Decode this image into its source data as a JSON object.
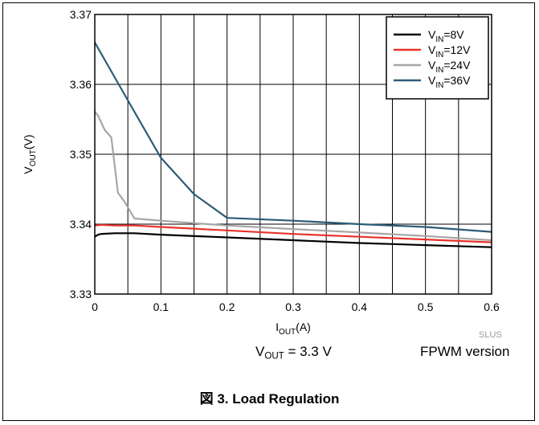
{
  "chart_data": {
    "type": "line",
    "xlabel": {
      "main": "I",
      "sub": "OUT",
      "unit": "(A)"
    },
    "ylabel": {
      "main": "V",
      "sub": "OUT",
      "unit": "(V)"
    },
    "xlim": [
      0,
      0.6
    ],
    "ylim": [
      3.33,
      3.37
    ],
    "xticks": [
      0,
      0.1,
      0.2,
      0.3,
      0.4,
      0.5,
      0.6
    ],
    "xtick_labels": [
      "0",
      "0.1",
      "0.2",
      "0.3",
      "0.4",
      "0.5",
      "0.6"
    ],
    "yticks": [
      3.33,
      3.34,
      3.35,
      3.36,
      3.37
    ],
    "ytick_labels": [
      "3.33",
      "3.34",
      "3.35",
      "3.36",
      "3.37"
    ],
    "minor_x_grid_step": 0.05,
    "grid": true,
    "legend_position": "top-right",
    "series": [
      {
        "name": "VIN=8V",
        "legend_main": "V",
        "legend_sub": "IN",
        "legend_rest": "=8V",
        "color": "#000000",
        "x": [
          0,
          0.005,
          0.01,
          0.03,
          0.06,
          0.1,
          0.2,
          0.3,
          0.4,
          0.5,
          0.6
        ],
        "y": [
          3.3382,
          3.3385,
          3.3386,
          3.3387,
          3.3387,
          3.3385,
          3.3381,
          3.3377,
          3.3373,
          3.337,
          3.3367
        ]
      },
      {
        "name": "VIN=12V",
        "legend_main": "V",
        "legend_sub": "IN",
        "legend_rest": "=12V",
        "color": "#e8322b",
        "x": [
          0,
          0.01,
          0.03,
          0.06,
          0.1,
          0.2,
          0.3,
          0.4,
          0.5,
          0.6
        ],
        "y": [
          3.3398,
          3.3399,
          3.3398,
          3.3398,
          3.3396,
          3.3391,
          3.3386,
          3.3382,
          3.3378,
          3.3374
        ]
      },
      {
        "name": "VIN=24V",
        "legend_main": "V",
        "legend_sub": "IN",
        "legend_rest": "=24V",
        "color": "#a6a6a6",
        "x": [
          0,
          0.005,
          0.015,
          0.025,
          0.035,
          0.045,
          0.06,
          0.1,
          0.2,
          0.3,
          0.4,
          0.5,
          0.6
        ],
        "y": [
          3.3561,
          3.3555,
          3.3535,
          3.3524,
          3.3445,
          3.3432,
          3.3408,
          3.3405,
          3.3398,
          3.3393,
          3.3388,
          3.3383,
          3.3377
        ]
      },
      {
        "name": "VIN=36V",
        "legend_main": "V",
        "legend_sub": "IN",
        "legend_rest": "=36V",
        "color": "#2c5c75",
        "x": [
          0,
          0.05,
          0.1,
          0.15,
          0.2,
          0.3,
          0.4,
          0.5,
          0.6
        ],
        "y": [
          3.366,
          3.3577,
          3.3495,
          3.3443,
          3.3409,
          3.3405,
          3.34,
          3.3396,
          3.3389
        ]
      }
    ]
  },
  "notes": {
    "doc_code": "SLUS",
    "vout_main": "V",
    "vout_sub": "OUT",
    "vout_rest": " = 3.3 V",
    "version": "FPWM version"
  },
  "caption": "図 3. Load Regulation"
}
